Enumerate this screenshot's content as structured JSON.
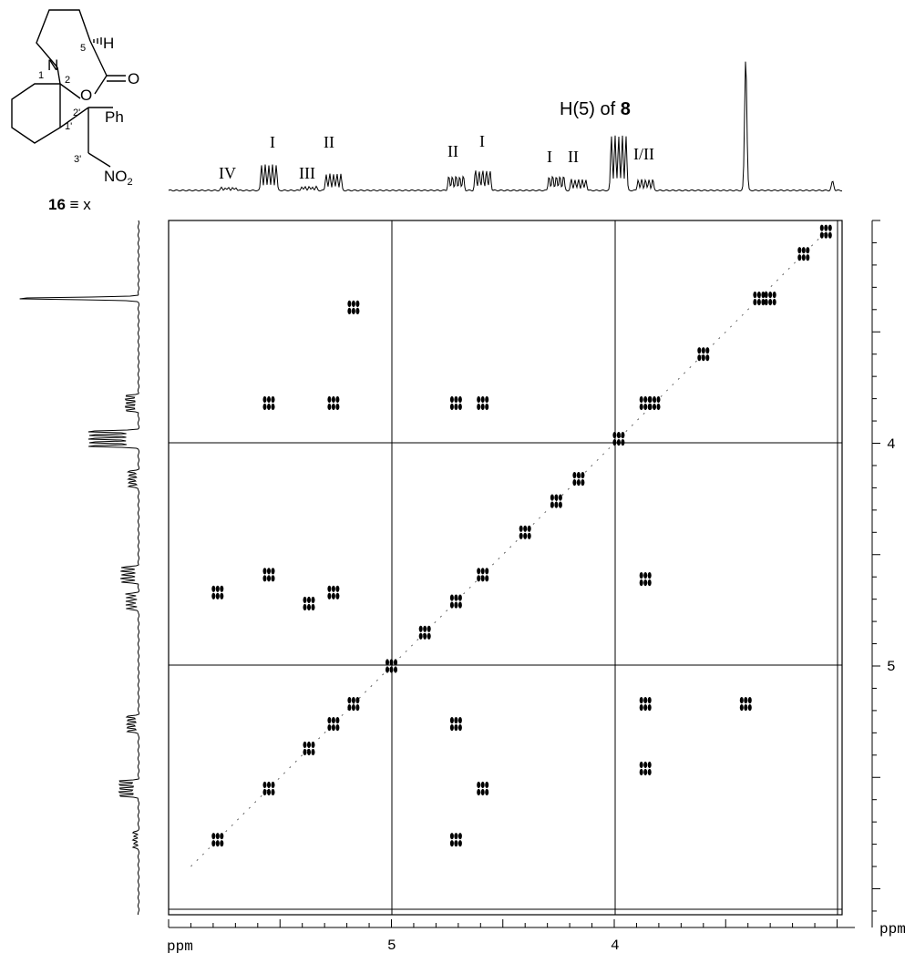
{
  "chart_data": {
    "type": "heatmap",
    "title": "",
    "subtitle": "",
    "xlabel": "ppm",
    "ylabel": "ppm",
    "x_ticks": [
      "5",
      "4"
    ],
    "y_ticks": [
      "4",
      "5"
    ],
    "xlim": [
      6.0,
      3.0
    ],
    "ylim": [
      3.0,
      6.0
    ],
    "grid": true,
    "x_projection_peaks": [
      {
        "label": "IV",
        "ppm": 5.73
      },
      {
        "label": "I",
        "ppm": 5.55
      },
      {
        "label": "III",
        "ppm": 5.37
      },
      {
        "label": "II",
        "ppm": 5.26
      },
      {
        "label": "II",
        "ppm": 4.71
      },
      {
        "label": "I",
        "ppm": 4.59
      },
      {
        "label": "I",
        "ppm": 4.26
      },
      {
        "label": "II",
        "ppm": 4.16
      },
      {
        "label": "H(5) of 8",
        "ppm": 3.98
      },
      {
        "label": "I/II",
        "ppm": 3.86
      }
    ],
    "cross_peaks": [
      {
        "x": 5.55,
        "y": 3.82
      },
      {
        "x": 5.26,
        "y": 3.82
      },
      {
        "x": 5.17,
        "y": 3.39
      },
      {
        "x": 4.59,
        "y": 3.82
      },
      {
        "x": 4.71,
        "y": 3.82
      },
      {
        "x": 3.86,
        "y": 3.82
      },
      {
        "x": 3.3,
        "y": 3.35
      },
      {
        "x": 3.86,
        "y": 4.61
      },
      {
        "x": 3.86,
        "y": 5.17
      },
      {
        "x": 3.86,
        "y": 5.46
      },
      {
        "x": 5.78,
        "y": 4.67
      },
      {
        "x": 5.55,
        "y": 4.59
      },
      {
        "x": 5.37,
        "y": 4.72
      },
      {
        "x": 5.26,
        "y": 4.67
      },
      {
        "x": 4.71,
        "y": 5.26
      },
      {
        "x": 4.59,
        "y": 5.55
      },
      {
        "x": 4.71,
        "y": 5.78
      },
      {
        "x": 3.41,
        "y": 5.17
      }
    ]
  },
  "labels": {
    "peak_iv": "IV",
    "peak_i_a": "I",
    "peak_iii": "III",
    "peak_ii_a": "II",
    "peak_ii_b": "II",
    "peak_i_b": "I",
    "peak_i_c": "I",
    "peak_ii_c": "II",
    "peak_h5_prefix": "H(5) of ",
    "peak_h5_compound": "8",
    "peak_i_ii": "I/II"
  },
  "structure": {
    "n_label": "N",
    "n_locant": "1",
    "c2_locant": "2",
    "c5_locant": "5",
    "h_label": "H",
    "o_ring": "O",
    "o_carbonyl": "O",
    "ph_label": "Ph",
    "c1p_locant": "1'",
    "c2p_locant": "2'",
    "c3p_locant": "3'",
    "no2_label": "NO",
    "no2_sub": "2",
    "compound_number": "16",
    "compound_eq": " ≡ x"
  }
}
